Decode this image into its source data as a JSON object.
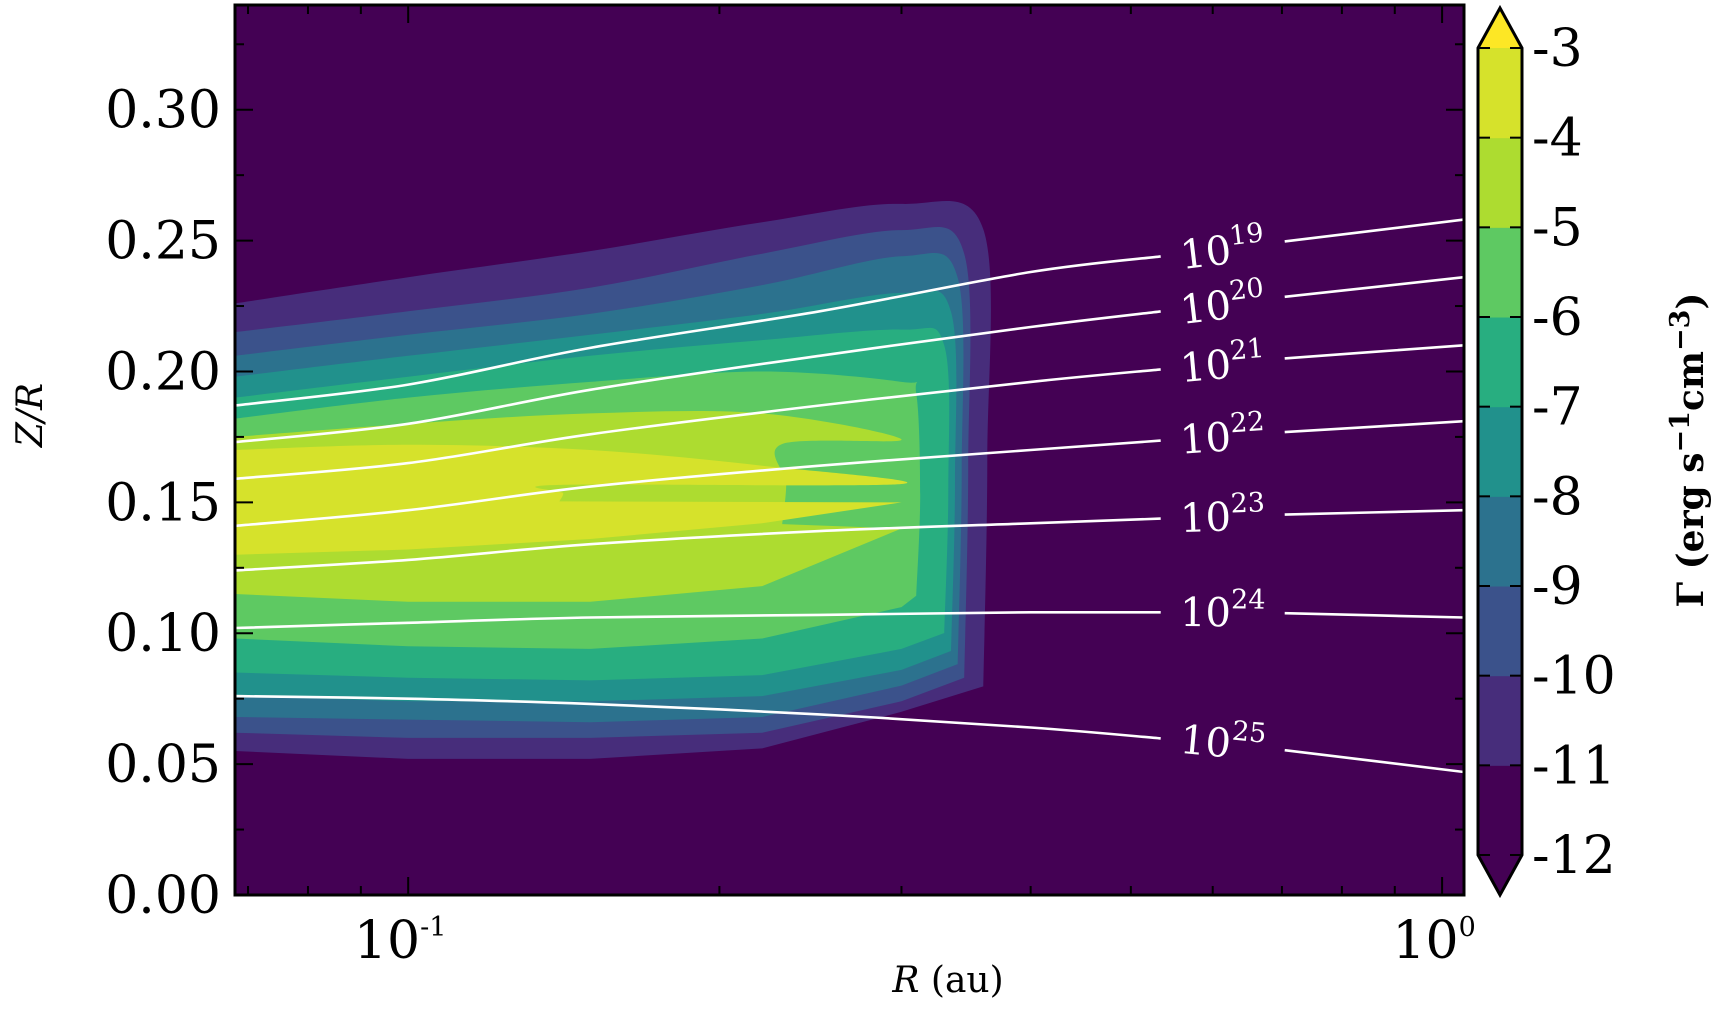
{
  "chart_data": {
    "type": "contourf",
    "xlabel": "R (au)",
    "xlabel_var": "R",
    "xlabel_unit": "(au)",
    "ylabel": "Z/R",
    "xscale": "log",
    "xlim": [
      0.068,
      1.05
    ],
    "ylim": [
      0.0,
      0.34
    ],
    "x_ticks": [
      {
        "value": 0.1,
        "base": "10",
        "exp": "-1"
      },
      {
        "value": 1.0,
        "base": "10",
        "exp": "0"
      }
    ],
    "y_ticks": [
      {
        "value": 0.0,
        "label": "0.00"
      },
      {
        "value": 0.05,
        "label": "0.05"
      },
      {
        "value": 0.1,
        "label": "0.10"
      },
      {
        "value": 0.15,
        "label": "0.15"
      },
      {
        "value": 0.2,
        "label": "0.20"
      },
      {
        "value": 0.25,
        "label": "0.25"
      },
      {
        "value": 0.3,
        "label": "0.30"
      }
    ],
    "colorbar": {
      "label": "Γ (erg s⁻¹cm⁻³)",
      "label_prefix": "Γ (erg s",
      "label_exp1": "−1",
      "label_mid": "cm",
      "label_exp2": "−3",
      "label_suffix": ")",
      "levels": [
        -12,
        -11,
        -10,
        -9,
        -8,
        -7,
        -6,
        -5,
        -4,
        -3
      ],
      "tick_labels": [
        "-12",
        "-11",
        "-10",
        "-9",
        "-8",
        "-7",
        "-6",
        "-5",
        "-4",
        "-3"
      ],
      "colors": [
        "#440154",
        "#472d7b",
        "#3b528b",
        "#2c728e",
        "#21918c",
        "#28ae80",
        "#5ec962",
        "#addc30",
        "#d6e22b",
        "#fde725"
      ],
      "extend": "both"
    },
    "heating_contours": [
      {
        "level": -11,
        "color": "#472d7b",
        "z_top": [
          0.226,
          0.236,
          0.246,
          0.257,
          0.264
        ],
        "z_bottom": [
          0.055,
          0.052,
          0.052,
          0.056,
          0.07
        ],
        "r_edge": 0.36
      },
      {
        "level": -10,
        "color": "#3b528b",
        "z_top": [
          0.215,
          0.223,
          0.232,
          0.245,
          0.254
        ],
        "z_bottom": [
          0.062,
          0.06,
          0.06,
          0.062,
          0.074
        ],
        "r_edge": 0.345
      },
      {
        "level": -9,
        "color": "#2c728e",
        "z_top": [
          0.206,
          0.214,
          0.222,
          0.233,
          0.244
        ],
        "z_bottom": [
          0.068,
          0.067,
          0.066,
          0.068,
          0.08
        ],
        "r_edge": 0.34
      },
      {
        "level": -8,
        "color": "#21918c",
        "z_top": [
          0.198,
          0.206,
          0.214,
          0.222,
          0.23
        ],
        "z_bottom": [
          0.076,
          0.074,
          0.074,
          0.076,
          0.086
        ],
        "r_edge": 0.335
      },
      {
        "level": -7,
        "color": "#28ae80",
        "z_top": [
          0.19,
          0.198,
          0.206,
          0.212,
          0.216
        ],
        "z_bottom": [
          0.085,
          0.083,
          0.082,
          0.084,
          0.094
        ],
        "r_edge": 0.33
      },
      {
        "level": -6,
        "color": "#5ec962",
        "z_top": [
          0.182,
          0.19,
          0.196,
          0.2,
          0.196
        ],
        "z_bottom": [
          0.098,
          0.095,
          0.094,
          0.098,
          0.11
        ],
        "r_edge": 0.31
      },
      {
        "level": -5,
        "color": "#addc30",
        "z_top": [
          0.175,
          0.18,
          0.184,
          0.184,
          0.174
        ],
        "z_bottom": [
          0.115,
          0.112,
          0.112,
          0.118,
          0.14
        ],
        "r_edge": 0.23
      },
      {
        "level": -4,
        "color": "#d6e22b",
        "z_top": [
          0.17,
          0.172,
          0.17,
          0.164,
          0.157
        ],
        "z_bottom": [
          0.13,
          0.132,
          0.136,
          0.142,
          0.15
        ],
        "r_edge": 0.14
      }
    ],
    "column_density_contours": [
      {
        "label_base": "10",
        "label_exp": "19",
        "z": [
          0.187,
          0.195,
          0.209,
          0.223,
          0.238,
          0.248,
          0.258
        ]
      },
      {
        "label_base": "10",
        "label_exp": "20",
        "z": [
          0.173,
          0.18,
          0.193,
          0.206,
          0.217,
          0.227,
          0.236
        ]
      },
      {
        "label_base": "10",
        "label_exp": "21",
        "z": [
          0.159,
          0.165,
          0.176,
          0.187,
          0.196,
          0.204,
          0.21
        ]
      },
      {
        "label_base": "10",
        "label_exp": "22",
        "z": [
          0.141,
          0.147,
          0.156,
          0.164,
          0.17,
          0.176,
          0.181
        ]
      },
      {
        "label_base": "10",
        "label_exp": "23",
        "z": [
          0.124,
          0.128,
          0.134,
          0.139,
          0.142,
          0.145,
          0.147
        ]
      },
      {
        "label_base": "10",
        "label_exp": "24",
        "z": [
          0.102,
          0.104,
          0.106,
          0.107,
          0.108,
          0.108,
          0.106
        ]
      },
      {
        "label_base": "10",
        "label_exp": "25",
        "z": [
          0.076,
          0.075,
          0.073,
          0.069,
          0.064,
          0.057,
          0.047
        ]
      }
    ],
    "column_density_r": [
      0.068,
      0.1,
      0.15,
      0.25,
      0.4,
      0.65,
      1.05
    ],
    "heating_r": [
      0.068,
      0.1,
      0.15,
      0.22,
      0.3
    ]
  }
}
